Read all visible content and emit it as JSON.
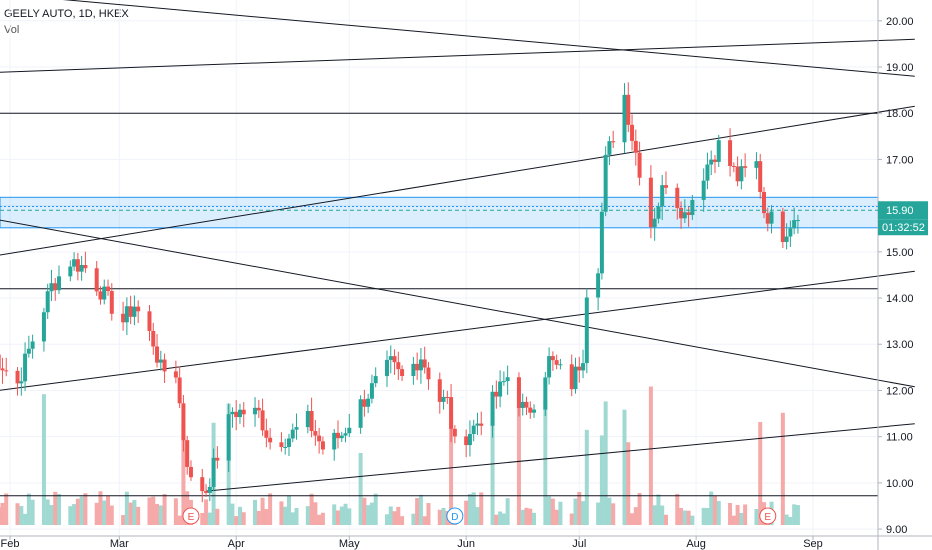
{
  "header": {
    "title": "GEELY AUTO, 1D, HKEX",
    "volume_label": "Vol"
  },
  "chart_data": {
    "type": "candlestick",
    "symbol": "GEELY AUTO",
    "interval": "1D",
    "exchange": "HKEX",
    "ylim": [
      8.85,
      20.45
    ],
    "y_ticks": [
      "9.00",
      "10.00",
      "11.00",
      "12.00",
      "13.00",
      "14.00",
      "15.00",
      "16.00",
      "17.00",
      "18.00",
      "19.00",
      "20.00"
    ],
    "x_ticks": [
      {
        "label": "Feb",
        "date": "2020-02-01"
      },
      {
        "label": "Mar",
        "date": "2020-03-01"
      },
      {
        "label": "Apr",
        "date": "2020-04-01"
      },
      {
        "label": "May",
        "date": "2020-05-01"
      },
      {
        "label": "Jun",
        "date": "2020-06-01"
      },
      {
        "label": "Jul",
        "date": "2020-07-01"
      },
      {
        "label": "Aug",
        "date": "2020-08-01"
      },
      {
        "label": "Sep",
        "date": "2020-09-01"
      }
    ],
    "last_price": {
      "value": "15.90",
      "countdown": "01:32:52"
    },
    "colors": {
      "up": "#26a69a",
      "down": "#ef5350",
      "vol_up": "#9fd9d2",
      "vol_down": "#f5a9a8",
      "zone": "#2196f3",
      "line": "#131722"
    },
    "zone": {
      "from": 15.52,
      "to": 16.18
    },
    "horizontal_lines": [
      18.0,
      14.2,
      9.72
    ],
    "trend_lines": [
      {
        "from": [
          "2020-01-27",
          20.6
        ],
        "to": [
          "2020-09-28",
          18.8
        ]
      },
      {
        "from": [
          "2020-01-27",
          18.88
        ],
        "to": [
          "2020-09-28",
          19.6
        ]
      },
      {
        "from": [
          "2020-01-27",
          14.9
        ],
        "to": [
          "2020-09-28",
          18.15
        ]
      },
      {
        "from": [
          "2020-01-27",
          15.72
        ],
        "to": [
          "2020-09-28",
          12.08
        ]
      },
      {
        "from": [
          "2020-01-27",
          11.98
        ],
        "to": [
          "2020-09-28",
          14.58
        ]
      },
      {
        "from": [
          "2020-03-24",
          9.82
        ],
        "to": [
          "2020-09-28",
          11.28
        ]
      }
    ],
    "events": [
      {
        "label": "E",
        "date": "2020-03-20",
        "kind": "earnings"
      },
      {
        "label": "D",
        "date": "2020-05-29",
        "kind": "dividend"
      },
      {
        "label": "E",
        "date": "2020-08-20",
        "kind": "earnings"
      }
    ],
    "anchors": [
      [
        "2020-01-27",
        12.85
      ],
      [
        "2020-02-03",
        12.15
      ],
      [
        "2020-02-07",
        13.1
      ],
      [
        "2020-02-12",
        14.25
      ],
      [
        "2020-02-17",
        14.8
      ],
      [
        "2020-02-21",
        14.65
      ],
      [
        "2020-02-26",
        14.05
      ],
      [
        "2020-03-02",
        13.5
      ],
      [
        "2020-03-05",
        13.85
      ],
      [
        "2020-03-10",
        13.05
      ],
      [
        "2020-03-12",
        12.45
      ],
      [
        "2020-03-16",
        12.4
      ],
      [
        "2020-03-18",
        11.0
      ],
      [
        "2020-03-20",
        10.0
      ],
      [
        "2020-03-24",
        9.85
      ],
      [
        "2020-03-27",
        10.6
      ],
      [
        "2020-03-31",
        11.55
      ],
      [
        "2020-04-07",
        11.5
      ],
      [
        "2020-04-10",
        10.9
      ],
      [
        "2020-04-15",
        11.0
      ],
      [
        "2020-04-20",
        11.35
      ],
      [
        "2020-04-24",
        10.75
      ],
      [
        "2020-04-29",
        11.05
      ],
      [
        "2020-05-04",
        11.7
      ],
      [
        "2020-05-08",
        12.15
      ],
      [
        "2020-05-12",
        12.55
      ],
      [
        "2020-05-15",
        12.25
      ],
      [
        "2020-05-20",
        12.75
      ],
      [
        "2020-05-25",
        11.8
      ],
      [
        "2020-05-27",
        11.75
      ],
      [
        "2020-05-29",
        10.8
      ],
      [
        "2020-06-03",
        11.2
      ],
      [
        "2020-06-08",
        11.75
      ],
      [
        "2020-06-12",
        12.3
      ],
      [
        "2020-06-17",
        11.45
      ],
      [
        "2020-06-19",
        11.8
      ],
      [
        "2020-06-23",
        12.65
      ],
      [
        "2020-06-29",
        12.15
      ],
      [
        "2020-07-02",
        12.8
      ],
      [
        "2020-07-03",
        14.2
      ],
      [
        "2020-07-06",
        14.75
      ],
      [
        "2020-07-08",
        16.95
      ],
      [
        "2020-07-13",
        18.4
      ],
      [
        "2020-07-15",
        17.5
      ],
      [
        "2020-07-17",
        16.8
      ],
      [
        "2020-07-20",
        15.6
      ],
      [
        "2020-07-24",
        16.55
      ],
      [
        "2020-07-29",
        15.8
      ],
      [
        "2020-08-04",
        16.9
      ],
      [
        "2020-08-07",
        17.3
      ],
      [
        "2020-08-12",
        16.6
      ],
      [
        "2020-08-17",
        16.9
      ],
      [
        "2020-08-19",
        15.9
      ],
      [
        "2020-08-24",
        15.4
      ],
      [
        "2020-08-28",
        15.9
      ]
    ]
  }
}
